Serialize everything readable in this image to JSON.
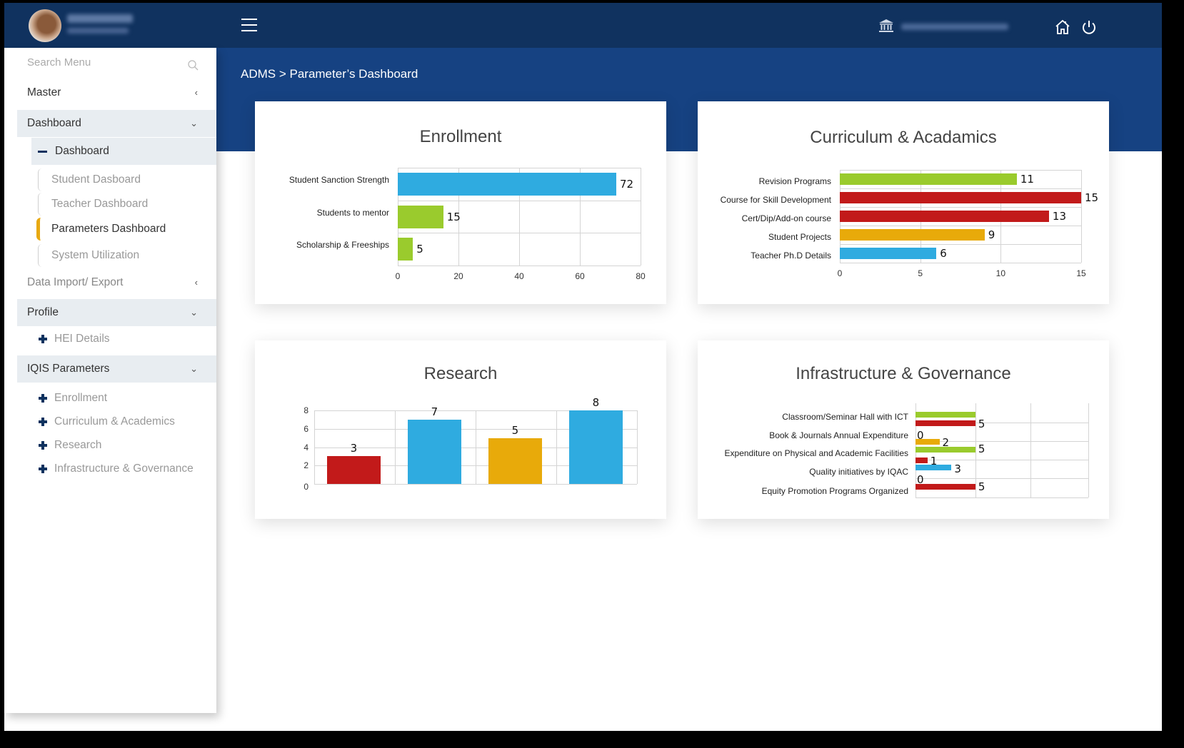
{
  "header": {
    "user_name": "ADMIN TEST",
    "user_role": "Institutional, I.E.",
    "college_name": "TEST AUTONOMOUS COLLEGE",
    "icons": {
      "menu": "hamburger-icon",
      "college": "institution-icon",
      "home": "home-icon",
      "logout": "power-icon"
    }
  },
  "breadcrumb": "ADMS > Parameter’s Dashboard",
  "sidebar": {
    "search_placeholder": "Search Menu",
    "master": "Master",
    "dashboard": "Dashboard",
    "dashboard_sub": "Dashboard",
    "dashboard_items": [
      "Student Dasboard",
      "Teacher Dashboard",
      "Parameters Dashboard",
      "System Utilization"
    ],
    "data_import": "Data Import/ Export",
    "profile": "Profile",
    "profile_items": [
      "HEI Details"
    ],
    "iqis": "IQIS Parameters",
    "iqis_items": [
      "Enrollment",
      "Curriculum & Academics",
      "Research",
      "Infrastructure & Governance"
    ]
  },
  "colors": {
    "header": "#10325f",
    "banner": "#164282",
    "blue": "#2fabe0",
    "green": "#9acb2d",
    "red": "#c21a1a",
    "orange": "#e8aa0a",
    "active_rail": "#e8a911"
  },
  "chart_data": [
    {
      "type": "bar",
      "orientation": "horizontal",
      "title": "Enrollment",
      "categories": [
        "Student Sanction Strength",
        "Students to mentor",
        "Scholarship & Freeships"
      ],
      "values": [
        72,
        15,
        5
      ],
      "colors": [
        "#2fabe0",
        "#9acb2d",
        "#9acb2d"
      ],
      "xticks": [
        0,
        20,
        40,
        60,
        80
      ],
      "xlim": [
        0,
        80
      ],
      "grid": true
    },
    {
      "type": "bar",
      "orientation": "horizontal",
      "title": "Curriculum & Acadamics",
      "categories": [
        "Revision Programs",
        "Course for Skill Development",
        "Cert/Dip/Add-on course",
        "Student Projects",
        "Teacher Ph.D Details"
      ],
      "values": [
        11,
        15,
        13,
        9,
        6
      ],
      "colors": [
        "#9acb2d",
        "#c21a1a",
        "#c21a1a",
        "#e8aa0a",
        "#2fabe0"
      ],
      "xticks": [
        0,
        5,
        10,
        15
      ],
      "xlim": [
        0,
        15
      ],
      "grid": true
    },
    {
      "type": "bar",
      "orientation": "vertical",
      "title": "Research",
      "categories": [
        "",
        "",
        "",
        ""
      ],
      "values": [
        3,
        7,
        5,
        8
      ],
      "colors": [
        "#c21a1a",
        "#2fabe0",
        "#e8aa0a",
        "#2fabe0"
      ],
      "yticks": [
        0,
        2,
        4,
        6,
        8
      ],
      "ylim": [
        0,
        8
      ],
      "grid": true
    },
    {
      "type": "bar",
      "orientation": "horizontal",
      "title": "Infrastructure & Governance",
      "categories": [
        "Classroom/Seminar Hall with ICT",
        "Book & Journals Annual Expenditure",
        "Expenditure on Physical and Academic Facilities",
        "Quality initiatives by IQAC",
        "Equity Promotion Programs Organized"
      ],
      "bars": [
        {
          "value": 5,
          "color": "#9acb2d",
          "label": ""
        },
        {
          "value": 5,
          "color": "#c21a1a",
          "label": "5"
        },
        {
          "value": 0,
          "color": "#c21a1a",
          "label": "0"
        },
        {
          "value": 2,
          "color": "#e8aa0a",
          "label": "2"
        },
        {
          "value": 5,
          "color": "#9acb2d",
          "label": "5"
        },
        {
          "value": 1,
          "color": "#c21a1a",
          "label": "1"
        },
        {
          "value": 3,
          "color": "#2fabe0",
          "label": "3"
        },
        {
          "value": 0,
          "color": "#2fabe0",
          "label": "0"
        },
        {
          "value": 5,
          "color": "#c21a1a",
          "label": "5"
        }
      ],
      "xlim": [
        0,
        15
      ],
      "grid": true
    }
  ]
}
